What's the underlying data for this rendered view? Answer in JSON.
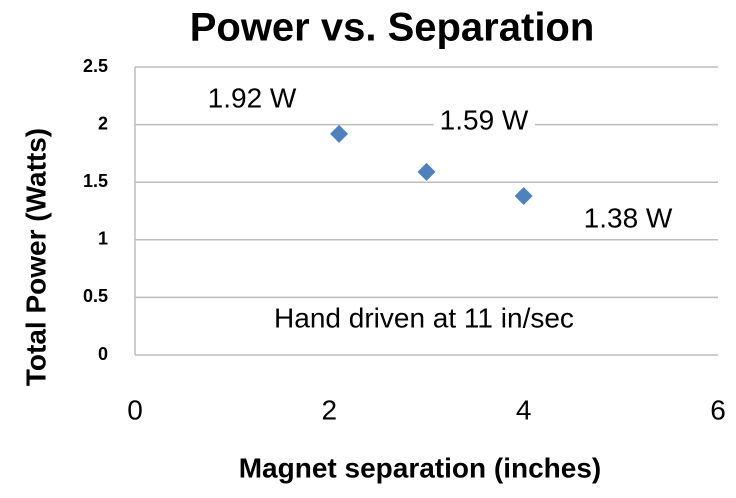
{
  "chart_data": {
    "type": "scatter",
    "title": "Power vs. Separation",
    "x_label": "Magnet separation (inches)",
    "y_label": "Total Power (Watts)",
    "annotation": "Hand driven at 11 in/sec",
    "series": [
      {
        "name": "Total Power",
        "color": "#4f81bd",
        "x": [
          2.1,
          3,
          4
        ],
        "values": [
          1.92,
          1.59,
          1.38
        ],
        "value_labels": [
          "1.92 W",
          "1.59 W",
          "1.38 W"
        ]
      }
    ],
    "xlim": [
      0,
      6
    ],
    "xticks": [
      0,
      2,
      4,
      6
    ],
    "ylim": [
      0,
      2.5
    ],
    "yticks": [
      0,
      0.5,
      1,
      1.5,
      2,
      2.5
    ],
    "grid": true
  }
}
